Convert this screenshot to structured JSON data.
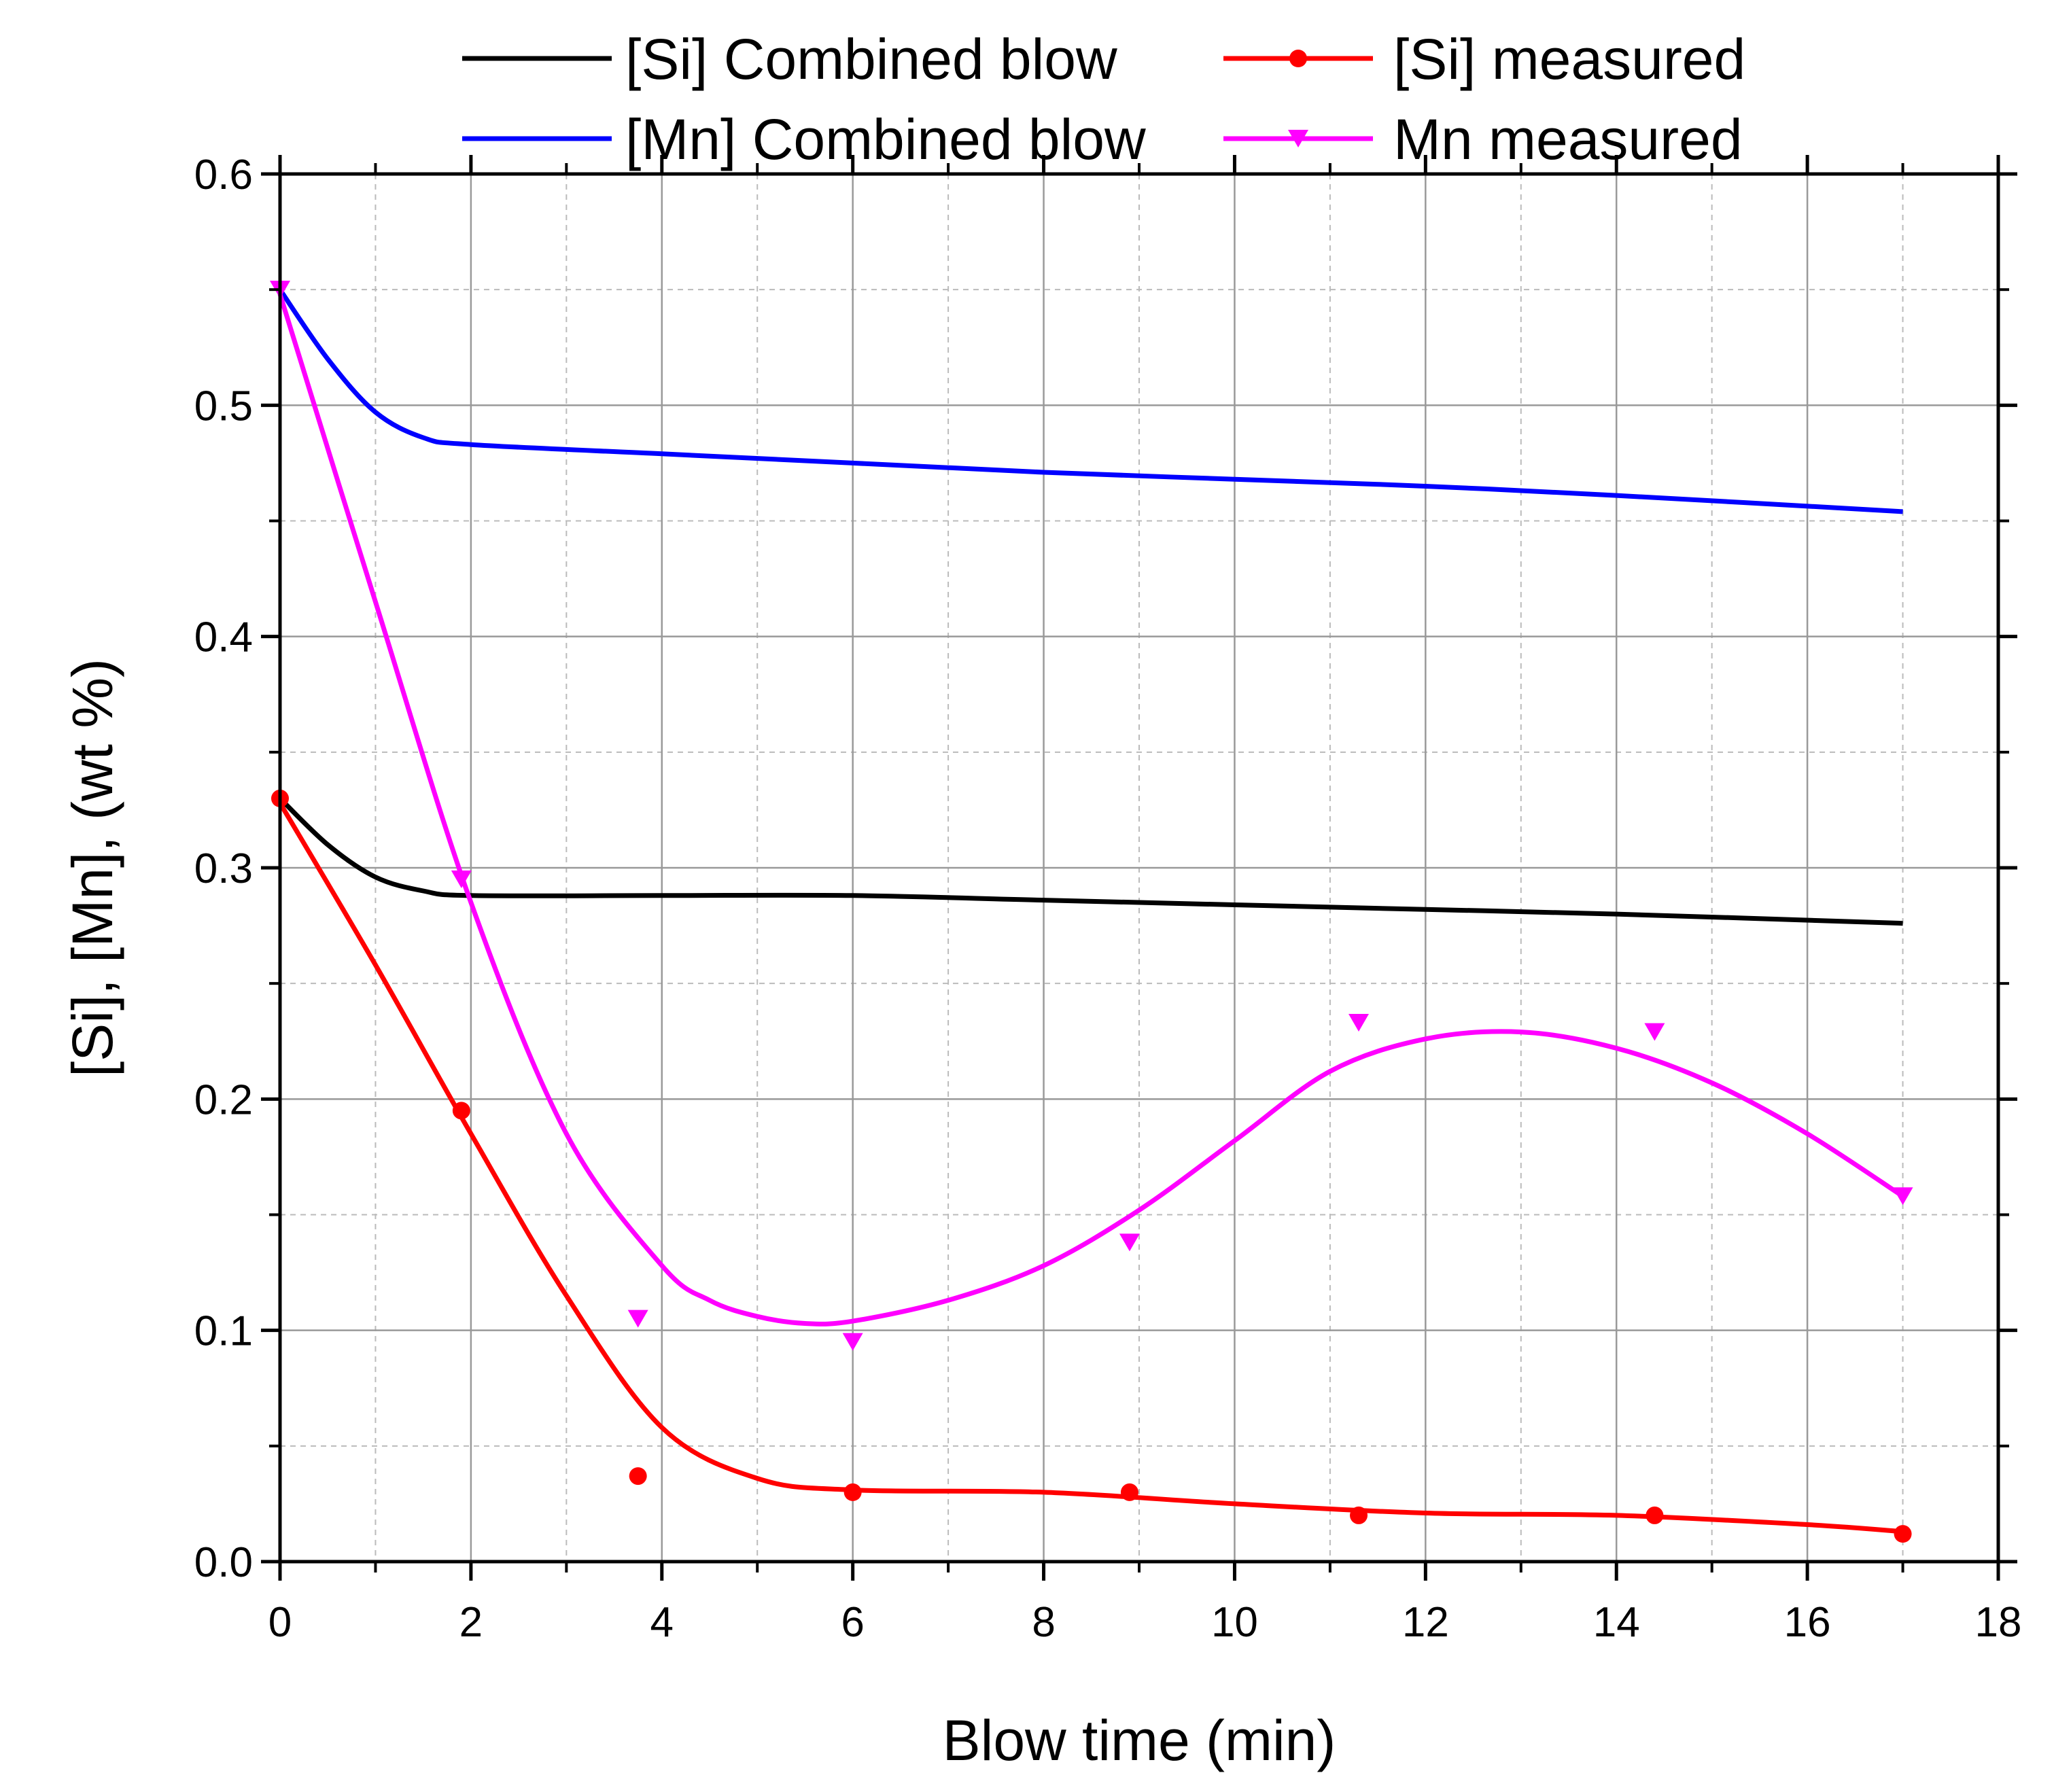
{
  "chart_data": {
    "type": "line",
    "title": "",
    "xlabel": "Blow time (min)",
    "ylabel": "[Si], [Mn], (wt %)",
    "xlim": [
      0,
      18
    ],
    "ylim": [
      0.0,
      0.6
    ],
    "xticks": [
      0,
      2,
      4,
      6,
      8,
      10,
      12,
      14,
      16,
      18
    ],
    "xtick_labels": [
      "0",
      "2",
      "4",
      "6",
      "8",
      "10",
      "12",
      "14",
      "16",
      "18"
    ],
    "yticks": [
      0.0,
      0.1,
      0.2,
      0.3,
      0.4,
      0.5,
      0.6
    ],
    "ytick_labels": [
      "0.0",
      "0.1",
      "0.2",
      "0.3",
      "0.4",
      "0.5",
      "0.6"
    ],
    "grid": true,
    "legend_position": "top",
    "series": [
      {
        "name": "[Si] Combined blow",
        "kind": "line",
        "color": "#000000",
        "x": [
          0,
          0.5,
          1.0,
          1.5,
          2.0,
          4.0,
          6.0,
          8.0,
          10.0,
          12.0,
          14.0,
          17.0
        ],
        "y": [
          0.33,
          0.31,
          0.296,
          0.29,
          0.288,
          0.288,
          0.288,
          0.286,
          0.284,
          0.282,
          0.28,
          0.276
        ]
      },
      {
        "name": "[Si] measured",
        "kind": "line+markers",
        "marker": "circle",
        "color": "#ff0000",
        "points_x": [
          0,
          1.9,
          3.75,
          6.0,
          8.9,
          11.3,
          14.4,
          17.0
        ],
        "points_y": [
          0.33,
          0.195,
          0.037,
          0.03,
          0.03,
          0.02,
          0.02,
          0.012
        ],
        "x": [
          0,
          1.0,
          2.0,
          3.0,
          4.0,
          5.0,
          6.0,
          8.0,
          10.0,
          12.0,
          14.0,
          16.0,
          17.0
        ],
        "y": [
          0.328,
          0.258,
          0.185,
          0.115,
          0.058,
          0.036,
          0.031,
          0.03,
          0.025,
          0.021,
          0.02,
          0.016,
          0.013
        ]
      },
      {
        "name": "[Mn] Combined blow",
        "kind": "line",
        "color": "#0000ff",
        "x": [
          0,
          0.5,
          1.0,
          1.5,
          2.0,
          4.0,
          6.0,
          8.0,
          10.0,
          12.0,
          14.0,
          17.0
        ],
        "y": [
          0.55,
          0.52,
          0.497,
          0.486,
          0.483,
          0.479,
          0.475,
          0.471,
          0.468,
          0.465,
          0.461,
          0.454
        ]
      },
      {
        "name": "Mn measured",
        "kind": "line+markers",
        "marker": "triangle-down",
        "color": "#ff00ff",
        "points_x": [
          0,
          1.9,
          3.75,
          6.0,
          8.9,
          11.3,
          14.4,
          17.0
        ],
        "points_y": [
          0.55,
          0.295,
          0.105,
          0.095,
          0.138,
          0.233,
          0.229,
          0.158
        ],
        "x": [
          0,
          1.0,
          2.0,
          3.0,
          4.0,
          4.5,
          5.0,
          5.5,
          6.0,
          7.0,
          8.0,
          9.0,
          10.0,
          11.0,
          12.0,
          13.0,
          14.0,
          15.0,
          16.0,
          17.0
        ],
        "y": [
          0.548,
          0.415,
          0.285,
          0.185,
          0.128,
          0.113,
          0.106,
          0.103,
          0.104,
          0.113,
          0.128,
          0.152,
          0.182,
          0.212,
          0.226,
          0.229,
          0.222,
          0.207,
          0.185,
          0.158
        ]
      }
    ]
  }
}
